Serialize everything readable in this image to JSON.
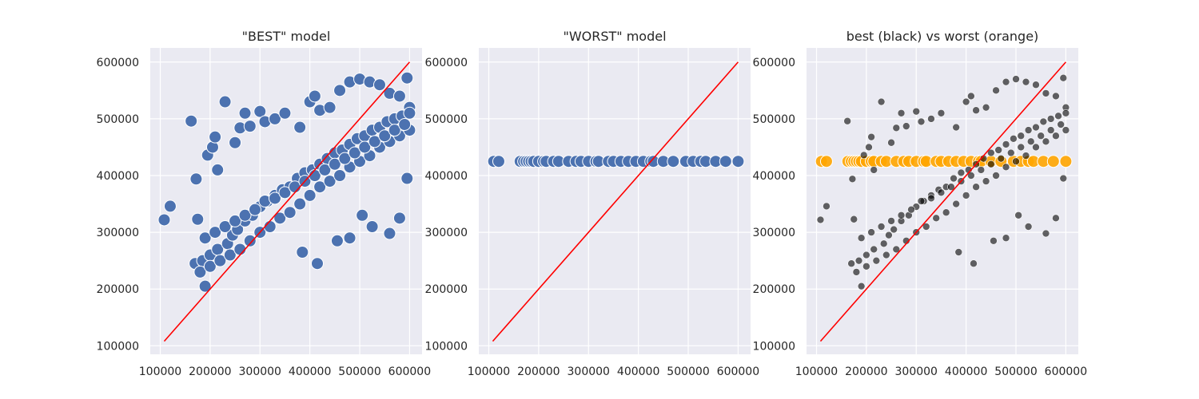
{
  "chart_data": [
    {
      "type": "scatter",
      "title": "\"BEST\" model",
      "xlabel": "",
      "ylabel": "",
      "xlim": [
        80000,
        625000
      ],
      "ylim": [
        85000,
        625000
      ],
      "xticks": [
        "100000",
        "200000",
        "300000",
        "400000",
        "500000",
        "600000"
      ],
      "yticks": [
        "100000",
        "200000",
        "300000",
        "400000",
        "500000",
        "600000"
      ],
      "grid": true,
      "reference_line": {
        "x": [
          108000,
          600000
        ],
        "y": [
          108000,
          600000
        ],
        "color": "#ff0000"
      },
      "series": [
        {
          "color": "#4c72b0",
          "x": [
            108000,
            120000,
            162000,
            172000,
            175000,
            190000,
            195000,
            205000,
            210000,
            215000,
            230000,
            250000,
            260000,
            270000,
            280000,
            300000,
            310000,
            330000,
            350000,
            380000,
            400000,
            410000,
            420000,
            440000,
            460000,
            480000,
            500000,
            520000,
            540000,
            560000,
            580000,
            595000,
            600000,
            170000,
            185000,
            200000,
            215000,
            235000,
            245000,
            255000,
            270000,
            285000,
            300000,
            315000,
            330000,
            345000,
            360000,
            375000,
            390000,
            405000,
            420000,
            435000,
            450000,
            465000,
            480000,
            495000,
            510000,
            525000,
            540000,
            555000,
            570000,
            585000,
            600000,
            180000,
            200000,
            220000,
            240000,
            260000,
            280000,
            300000,
            320000,
            340000,
            360000,
            380000,
            400000,
            420000,
            440000,
            460000,
            480000,
            500000,
            520000,
            540000,
            560000,
            580000,
            600000,
            190000,
            210000,
            230000,
            250000,
            270000,
            290000,
            310000,
            330000,
            350000,
            370000,
            390000,
            410000,
            430000,
            450000,
            470000,
            490000,
            510000,
            530000,
            550000,
            570000,
            590000,
            415000,
            505000,
            560000,
            580000,
            595000,
            385000,
            480000,
            525000,
            455000
          ],
          "y": [
            322000,
            346000,
            496000,
            394000,
            323000,
            205000,
            436000,
            450000,
            468000,
            410000,
            530000,
            458000,
            484000,
            510000,
            487000,
            513000,
            495000,
            500000,
            510000,
            485000,
            530000,
            540000,
            515000,
            520000,
            550000,
            565000,
            570000,
            565000,
            560000,
            545000,
            540000,
            572000,
            520000,
            245000,
            250000,
            260000,
            270000,
            280000,
            295000,
            305000,
            320000,
            330000,
            345000,
            355000,
            365000,
            375000,
            380000,
            395000,
            405000,
            410000,
            420000,
            430000,
            440000,
            445000,
            455000,
            465000,
            470000,
            480000,
            485000,
            495000,
            500000,
            505000,
            510000,
            230000,
            240000,
            250000,
            260000,
            270000,
            285000,
            300000,
            310000,
            325000,
            335000,
            350000,
            365000,
            380000,
            390000,
            400000,
            415000,
            425000,
            435000,
            450000,
            460000,
            470000,
            480000,
            290000,
            300000,
            310000,
            320000,
            330000,
            340000,
            355000,
            360000,
            370000,
            380000,
            390000,
            400000,
            410000,
            420000,
            430000,
            440000,
            450000,
            460000,
            470000,
            480000,
            490000,
            245000,
            330000,
            298000,
            325000,
            395000,
            265000,
            290000,
            310000,
            285000
          ]
        }
      ]
    },
    {
      "type": "scatter",
      "title": "\"WORST\" model",
      "xlabel": "",
      "ylabel": "",
      "xlim": [
        80000,
        625000
      ],
      "ylim": [
        85000,
        625000
      ],
      "xticks": [
        "100000",
        "200000",
        "300000",
        "400000",
        "500000",
        "600000"
      ],
      "yticks": [
        "100000",
        "200000",
        "300000",
        "400000",
        "500000",
        "600000"
      ],
      "grid": true,
      "reference_line": {
        "x": [
          108000,
          600000
        ],
        "y": [
          108000,
          600000
        ],
        "color": "#ff0000"
      },
      "series": [
        {
          "color": "#4c72b0",
          "x": [
            110000,
            120000,
            163000,
            170000,
            175000,
            180000,
            185000,
            190000,
            200000,
            210000,
            215000,
            230000,
            240000,
            260000,
            275000,
            285000,
            300000,
            315000,
            320000,
            340000,
            350000,
            365000,
            380000,
            395000,
            410000,
            425000,
            430000,
            450000,
            470000,
            495000,
            510000,
            525000,
            535000,
            555000,
            575000,
            600000
          ],
          "y": [
            425000,
            425000,
            425000,
            425000,
            425000,
            425000,
            425000,
            425000,
            425000,
            425000,
            425000,
            425000,
            425000,
            425000,
            425000,
            425000,
            425000,
            425000,
            425000,
            425000,
            425000,
            425000,
            425000,
            425000,
            425000,
            425000,
            425000,
            425000,
            425000,
            425000,
            425000,
            425000,
            425000,
            425000,
            425000,
            425000
          ]
        }
      ]
    },
    {
      "type": "scatter",
      "title": "best (black) vs worst (orange)",
      "xlabel": "",
      "ylabel": "",
      "xlim": [
        80000,
        625000
      ],
      "ylim": [
        85000,
        625000
      ],
      "xticks": [
        "100000",
        "200000",
        "300000",
        "400000",
        "500000",
        "600000"
      ],
      "yticks": [
        "100000",
        "200000",
        "300000",
        "400000",
        "500000",
        "600000"
      ],
      "grid": true,
      "reference_line": {
        "x": [
          108000,
          600000
        ],
        "y": [
          108000,
          600000
        ],
        "color": "#ff0000"
      },
      "series": [
        {
          "color": "#ffa500",
          "x": [
            110000,
            120000,
            163000,
            170000,
            175000,
            180000,
            185000,
            190000,
            200000,
            210000,
            215000,
            230000,
            240000,
            260000,
            275000,
            285000,
            300000,
            315000,
            320000,
            340000,
            350000,
            365000,
            380000,
            395000,
            410000,
            425000,
            430000,
            450000,
            470000,
            495000,
            510000,
            525000,
            535000,
            555000,
            575000,
            600000
          ],
          "y": [
            425000,
            425000,
            425000,
            425000,
            425000,
            425000,
            425000,
            425000,
            425000,
            425000,
            425000,
            425000,
            425000,
            425000,
            425000,
            425000,
            425000,
            425000,
            425000,
            425000,
            425000,
            425000,
            425000,
            425000,
            425000,
            425000,
            425000,
            425000,
            425000,
            425000,
            425000,
            425000,
            425000,
            425000,
            425000,
            425000
          ]
        },
        {
          "color": "#000000",
          "x": [
            108000,
            120000,
            162000,
            172000,
            175000,
            190000,
            195000,
            205000,
            210000,
            215000,
            230000,
            250000,
            260000,
            270000,
            280000,
            300000,
            310000,
            330000,
            350000,
            380000,
            400000,
            410000,
            420000,
            440000,
            460000,
            480000,
            500000,
            520000,
            540000,
            560000,
            580000,
            595000,
            600000,
            170000,
            185000,
            200000,
            215000,
            235000,
            245000,
            255000,
            270000,
            285000,
            300000,
            315000,
            330000,
            345000,
            360000,
            375000,
            390000,
            405000,
            420000,
            435000,
            450000,
            465000,
            480000,
            495000,
            510000,
            525000,
            540000,
            555000,
            570000,
            585000,
            600000,
            180000,
            200000,
            220000,
            240000,
            260000,
            280000,
            300000,
            320000,
            340000,
            360000,
            380000,
            400000,
            420000,
            440000,
            460000,
            480000,
            500000,
            520000,
            540000,
            560000,
            580000,
            600000,
            190000,
            210000,
            230000,
            250000,
            270000,
            290000,
            310000,
            330000,
            350000,
            370000,
            390000,
            410000,
            430000,
            450000,
            470000,
            490000,
            510000,
            530000,
            550000,
            570000,
            590000,
            415000,
            505000,
            560000,
            580000,
            595000,
            385000,
            480000,
            525000,
            455000
          ],
          "y": [
            322000,
            346000,
            496000,
            394000,
            323000,
            205000,
            436000,
            450000,
            468000,
            410000,
            530000,
            458000,
            484000,
            510000,
            487000,
            513000,
            495000,
            500000,
            510000,
            485000,
            530000,
            540000,
            515000,
            520000,
            550000,
            565000,
            570000,
            565000,
            560000,
            545000,
            540000,
            572000,
            520000,
            245000,
            250000,
            260000,
            270000,
            280000,
            295000,
            305000,
            320000,
            330000,
            345000,
            355000,
            365000,
            375000,
            380000,
            395000,
            405000,
            410000,
            420000,
            430000,
            440000,
            445000,
            455000,
            465000,
            470000,
            480000,
            485000,
            495000,
            500000,
            505000,
            510000,
            230000,
            240000,
            250000,
            260000,
            270000,
            285000,
            300000,
            310000,
            325000,
            335000,
            350000,
            365000,
            380000,
            390000,
            400000,
            415000,
            425000,
            435000,
            450000,
            460000,
            470000,
            480000,
            290000,
            300000,
            310000,
            320000,
            330000,
            340000,
            355000,
            360000,
            370000,
            380000,
            390000,
            400000,
            410000,
            420000,
            430000,
            440000,
            450000,
            460000,
            470000,
            480000,
            490000,
            245000,
            330000,
            298000,
            325000,
            395000,
            265000,
            290000,
            310000,
            285000
          ]
        }
      ]
    }
  ]
}
